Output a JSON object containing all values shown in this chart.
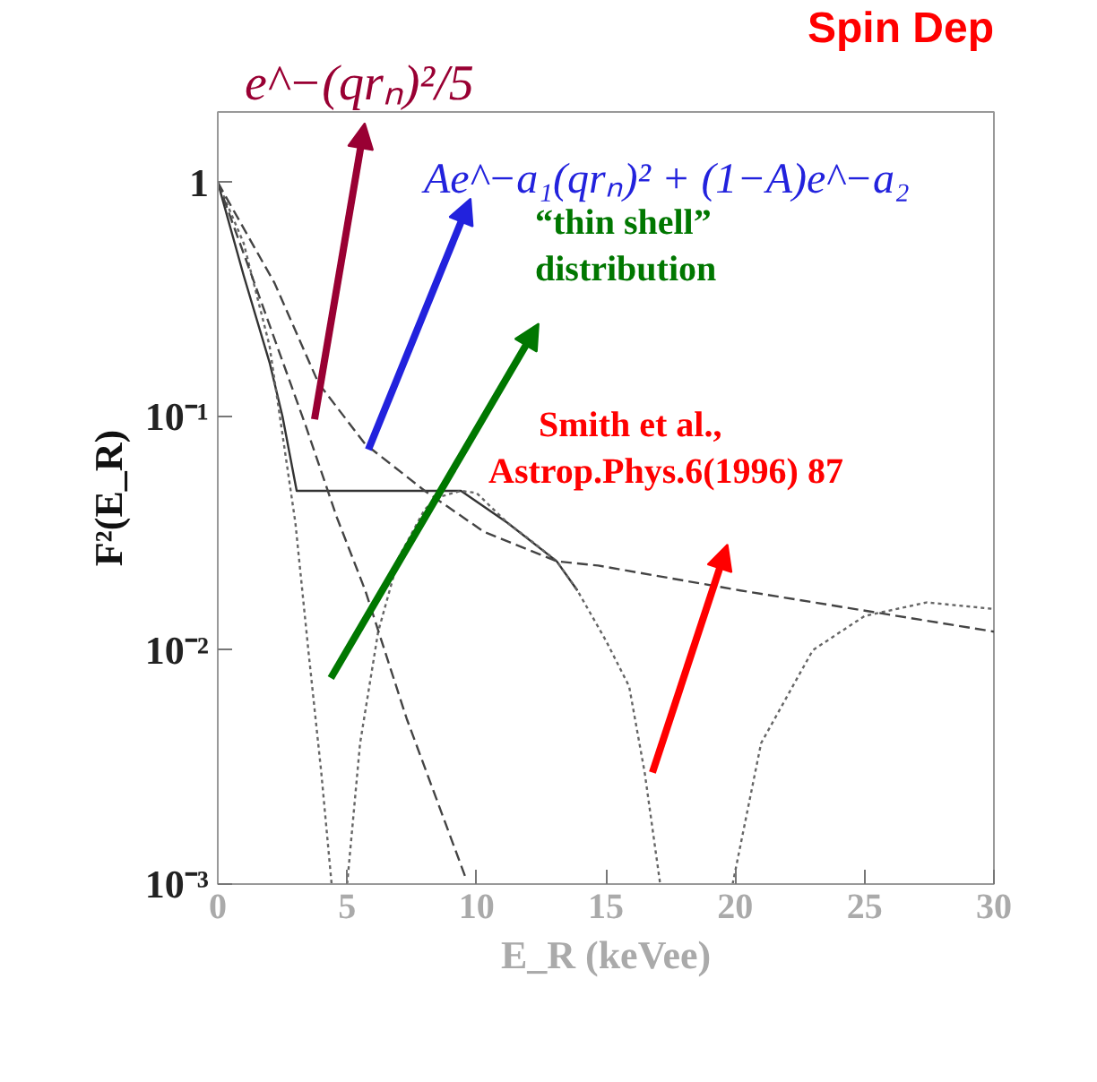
{
  "chart_data": {
    "type": "line",
    "title": "Spin Dep",
    "xlabel": "E_R (keVee)",
    "ylabel": "F²(E_R)",
    "log": "y",
    "xlim": [
      0,
      30
    ],
    "ylim": [
      0.001,
      2
    ],
    "xticks": [
      0,
      5,
      10,
      15,
      20,
      25,
      30
    ],
    "yticks": [
      {
        "value": 0.001,
        "label": "10⁻³"
      },
      {
        "value": 0.01,
        "label": "10⁻²"
      },
      {
        "value": 0.1,
        "label": "10⁻¹"
      },
      1
    ],
    "grid": false,
    "marker": "none",
    "annotations": [
      "e^−(qrₙ)²/5",
      "Ae^−a₁(qrₙ)² + (1−A)e^−a₂",
      "“thin shell”\n distribution",
      "Smith et al.,\nAstrop.Phys.6(1996) 87"
    ],
    "series": [
      {
        "color": "#333333",
        "line_style": "solid",
        "x": [
          0,
          1,
          2,
          2.5,
          3.05,
          8.7,
          9.4,
          11.2,
          13.1,
          13.9
        ],
        "values": [
          1,
          0.4,
          0.17,
          0.1,
          0.048,
          0.048,
          0.048,
          0.035,
          0.024,
          0.018
        ]
      },
      {
        "color": "#666666",
        "line_style": "dotted",
        "x": [
          0,
          1,
          2,
          3,
          3.5,
          4,
          4.4,
          4.7,
          5.0,
          5.5,
          6.2,
          7,
          8,
          8.5,
          9.4,
          10,
          11.2,
          12,
          13.1,
          13.9,
          15,
          15.9,
          16.5,
          17.1,
          18.5,
          19.9,
          21,
          23,
          25,
          27.4,
          30
        ],
        "values": [
          1,
          0.55,
          0.2,
          0.035,
          0.01,
          0.003,
          0.001,
          null,
          0.001,
          0.004,
          0.012,
          0.025,
          0.04,
          0.045,
          0.048,
          0.047,
          0.035,
          0.03,
          0.024,
          0.018,
          0.011,
          0.007,
          0.003,
          0.001,
          null,
          0.001,
          0.004,
          0.01,
          0.014,
          0.016,
          0.015
        ]
      },
      {
        "color": "#444444",
        "line_style": "dashed",
        "x": [
          0,
          1.5,
          3.4,
          4.6,
          5.7,
          7.3,
          9.6
        ],
        "values": [
          1,
          0.35,
          0.091,
          0.037,
          0.018,
          0.0051,
          0.00105
        ]
      },
      {
        "color": "#444444",
        "line_style": "dashed",
        "x": [
          0,
          2.2,
          3.9,
          5.7,
          8,
          10.3,
          13.1,
          14.7,
          20.2,
          30
        ],
        "values": [
          1,
          0.37,
          0.138,
          0.076,
          0.048,
          0.032,
          0.024,
          0.023,
          0.018,
          0.012
        ]
      }
    ]
  }
}
